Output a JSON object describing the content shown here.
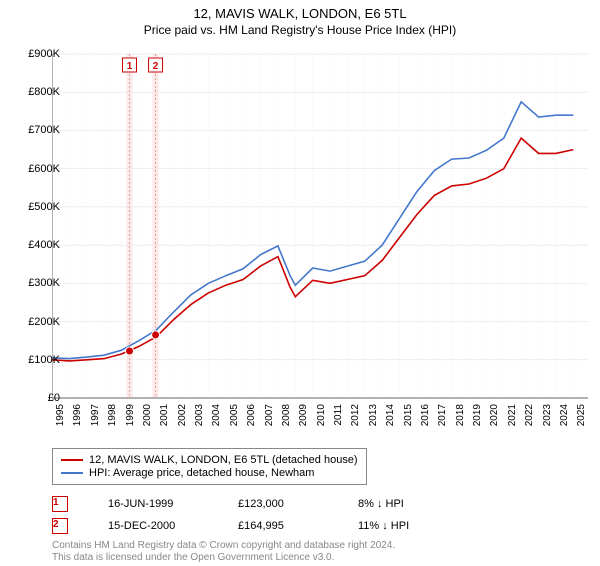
{
  "title": "12, MAVIS WALK, LONDON, E6 5TL",
  "subtitle": "Price paid vs. HM Land Registry's House Price Index (HPI)",
  "chart": {
    "type": "line",
    "ylim": [
      0,
      900000
    ],
    "ytick_step": 100000,
    "ytick_prefix": "£",
    "ytick_suffix": "K",
    "xlim": [
      1995,
      2025.5
    ],
    "xticks": [
      1995,
      1996,
      1997,
      1998,
      1999,
      2000,
      2001,
      2002,
      2003,
      2004,
      2005,
      2006,
      2007,
      2008,
      2009,
      2010,
      2011,
      2012,
      2013,
      2014,
      2015,
      2016,
      2017,
      2018,
      2019,
      2020,
      2021,
      2022,
      2023,
      2024,
      2025
    ],
    "background_color": "#ffffff",
    "grid_color": "#e6e6e6",
    "axis_color": "#666666",
    "title_fontsize": 13,
    "label_fontsize": 11,
    "tick_fontsize": 10,
    "line_width": 1.6,
    "series": [
      {
        "label": "12, MAVIS WALK, LONDON, E6 5TL (detached house)",
        "color": "#cc0000",
        "x": [
          1995,
          1996,
          1997,
          1998,
          1999,
          2000,
          2001,
          2002,
          2003,
          2004,
          2005,
          2006,
          2007,
          2008,
          2008.7,
          2009,
          2010,
          2011,
          2012,
          2013,
          2014,
          2015,
          2016,
          2017,
          2018,
          2019,
          2020,
          2021,
          2022,
          2023,
          2024,
          2025
        ],
        "y": [
          100000,
          97000,
          100000,
          103000,
          115000,
          135000,
          160000,
          205000,
          245000,
          275000,
          295000,
          310000,
          345000,
          370000,
          290000,
          265000,
          308000,
          300000,
          310000,
          320000,
          360000,
          420000,
          480000,
          530000,
          555000,
          560000,
          575000,
          600000,
          680000,
          640000,
          640000,
          650000
        ]
      },
      {
        "label": "HPI: Average price, detached house, Newham",
        "color": "#4477cc",
        "x": [
          1995,
          1996,
          1997,
          1998,
          1999,
          2000,
          2001,
          2002,
          2003,
          2004,
          2005,
          2006,
          2007,
          2008,
          2008.7,
          2009,
          2010,
          2011,
          2012,
          2013,
          2014,
          2015,
          2016,
          2017,
          2018,
          2019,
          2020,
          2021,
          2022,
          2023,
          2024,
          2025
        ],
        "y": [
          105000,
          103000,
          107000,
          112000,
          125000,
          150000,
          178000,
          225000,
          270000,
          300000,
          320000,
          338000,
          375000,
          398000,
          320000,
          295000,
          340000,
          332000,
          345000,
          358000,
          400000,
          470000,
          540000,
          595000,
          625000,
          628000,
          648000,
          680000,
          775000,
          735000,
          740000,
          740000
        ]
      }
    ],
    "markers": [
      {
        "n": "1",
        "x": 1999.46,
        "y": 123000,
        "band_color": "#fde0e0"
      },
      {
        "n": "2",
        "x": 2000.96,
        "y": 164995,
        "band_color": "#fde0e0"
      }
    ],
    "band_width_years": 0.35
  },
  "legend": {
    "items": [
      {
        "color": "#cc0000",
        "label": "12, MAVIS WALK, LONDON, E6 5TL (detached house)"
      },
      {
        "color": "#4477cc",
        "label": "HPI: Average price, detached house, Newham"
      }
    ]
  },
  "transactions": [
    {
      "n": "1",
      "date": "16-JUN-1999",
      "price": "£123,000",
      "delta": "8% ↓ HPI"
    },
    {
      "n": "2",
      "date": "15-DEC-2000",
      "price": "£164,995",
      "delta": "11% ↓ HPI"
    }
  ],
  "attribution": {
    "line1": "Contains HM Land Registry data © Crown copyright and database right 2024.",
    "line2": "This data is licensed under the Open Government Licence v3.0."
  }
}
